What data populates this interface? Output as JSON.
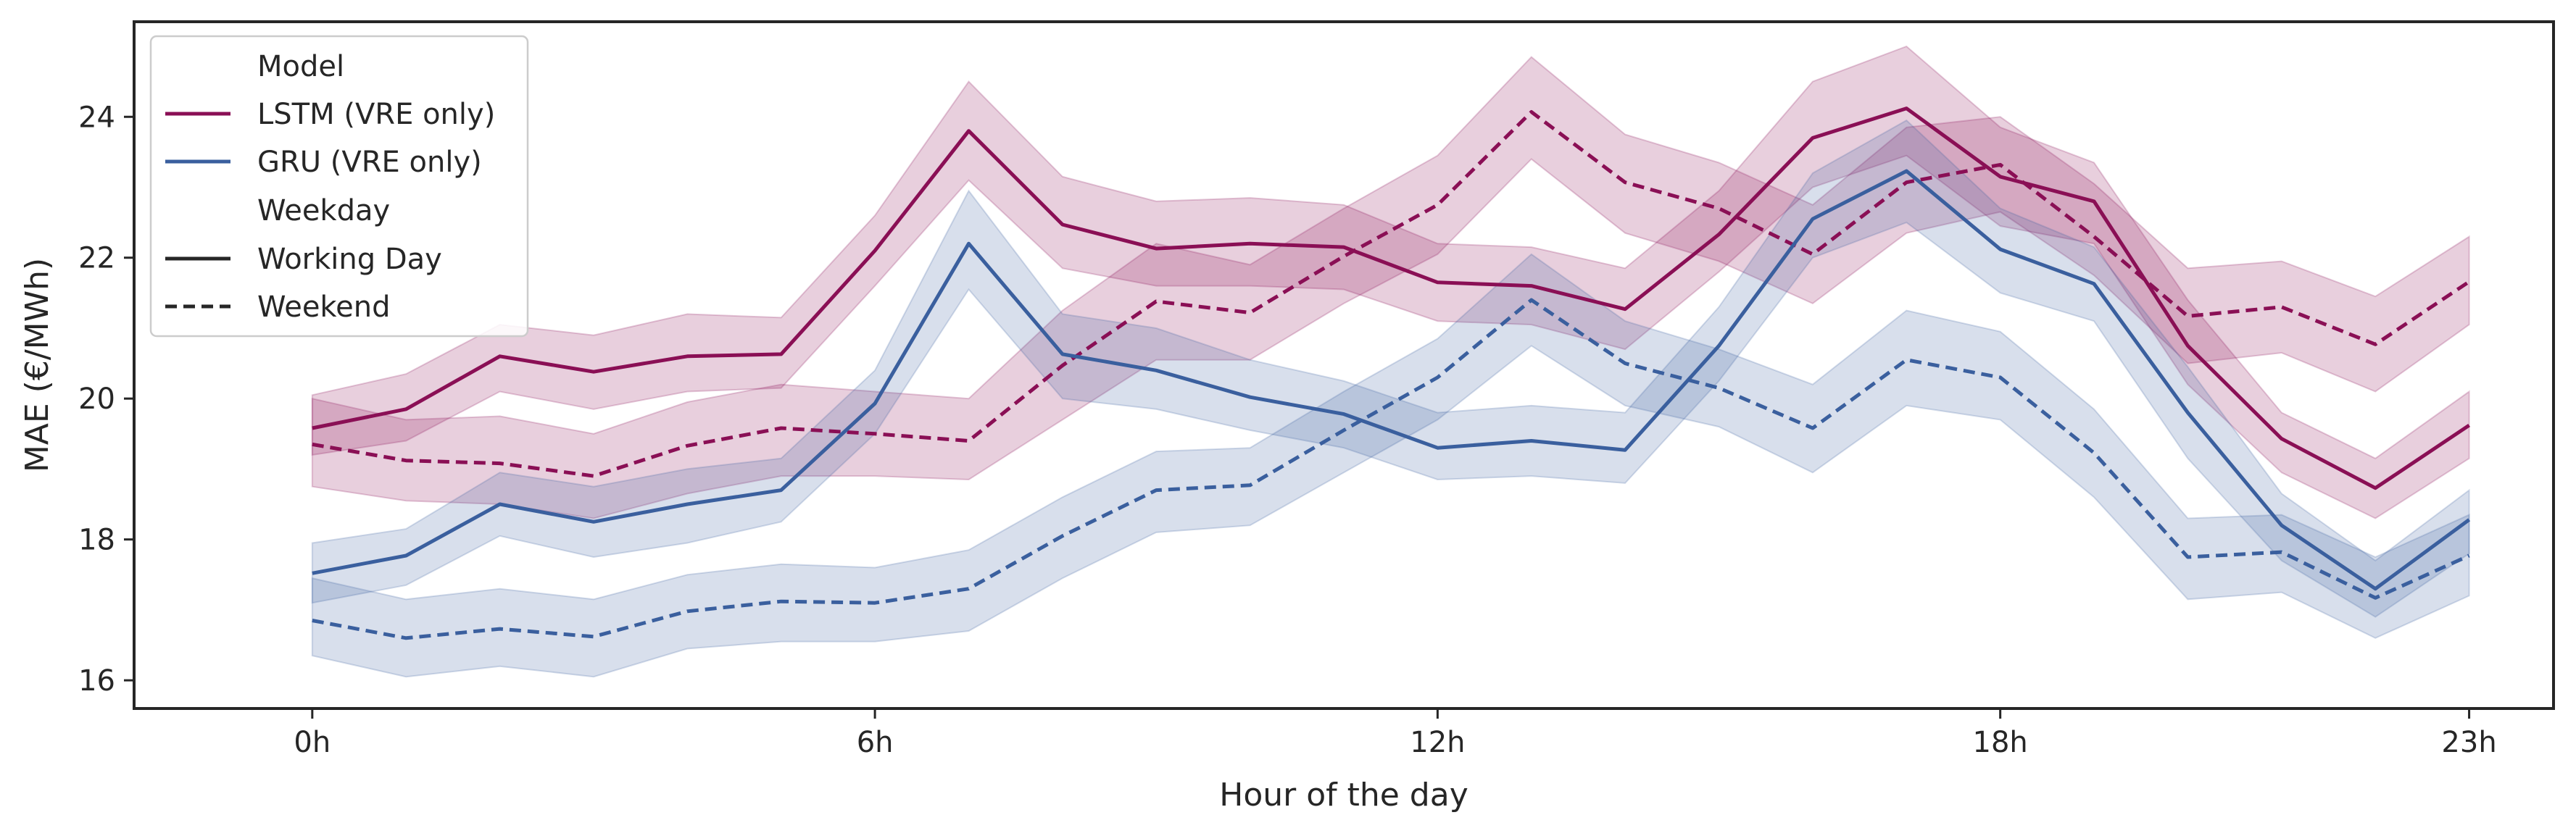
{
  "chart_data": {
    "type": "line",
    "xlabel": "Hour of the day",
    "ylabel": "MAE (€/MWh)",
    "xlim": [
      -1.9,
      23.9
    ],
    "ylim": [
      15.6,
      25.35
    ],
    "x_ticks": [
      {
        "value": 0,
        "label": "0h"
      },
      {
        "value": 6,
        "label": "6h"
      },
      {
        "value": 12,
        "label": "12h"
      },
      {
        "value": 18,
        "label": "18h"
      },
      {
        "value": 23,
        "label": "23h"
      }
    ],
    "y_ticks": [
      {
        "value": 16,
        "label": "16"
      },
      {
        "value": 18,
        "label": "18"
      },
      {
        "value": 20,
        "label": "20"
      },
      {
        "value": 22,
        "label": "22"
      },
      {
        "value": 24,
        "label": "24"
      }
    ],
    "grid": false,
    "legend": {
      "placement": "top-left",
      "model_title": "Model",
      "weekday_title": "Weekday",
      "entries_model": [
        "LSTM (VRE only)",
        "GRU (VRE only)"
      ],
      "entries_weekday": [
        "Working Day",
        "Weekend"
      ]
    },
    "colors": {
      "lstm": "#8a0f55",
      "gru": "#3a5f9e",
      "legend_neutral": "#262626"
    },
    "x": [
      0,
      1,
      2,
      3,
      4,
      5,
      6,
      7,
      8,
      9,
      10,
      11,
      12,
      13,
      14,
      15,
      16,
      17,
      18,
      19,
      20,
      21,
      22,
      23
    ],
    "series": [
      {
        "name": "LSTM (VRE only)",
        "model": "lstm",
        "weekday": "Working Day",
        "style": "solid",
        "values": [
          19.58,
          19.85,
          20.6,
          20.38,
          20.6,
          20.63,
          22.1,
          23.8,
          22.47,
          22.13,
          22.2,
          22.15,
          21.65,
          21.6,
          21.27,
          22.33,
          23.7,
          24.12,
          23.15,
          22.8,
          20.75,
          19.43,
          18.73,
          19.62
        ],
        "lower": [
          19.2,
          19.4,
          20.1,
          19.85,
          20.1,
          20.15,
          21.6,
          23.1,
          21.85,
          21.6,
          21.6,
          21.55,
          21.1,
          21.05,
          20.7,
          21.8,
          23.0,
          23.45,
          22.45,
          22.2,
          20.2,
          18.95,
          18.3,
          19.15
        ],
        "upper": [
          20.05,
          20.35,
          21.05,
          20.9,
          21.2,
          21.15,
          22.6,
          24.5,
          23.15,
          22.8,
          22.85,
          22.75,
          22.2,
          22.15,
          21.85,
          22.95,
          24.5,
          25.0,
          23.85,
          23.35,
          21.4,
          19.8,
          19.15,
          20.1
        ]
      },
      {
        "name": "LSTM (VRE only)",
        "model": "lstm",
        "weekday": "Weekend",
        "style": "dashed",
        "values": [
          19.35,
          19.12,
          19.08,
          18.9,
          19.33,
          19.58,
          19.5,
          19.4,
          20.47,
          21.38,
          21.22,
          22.02,
          22.75,
          24.07,
          23.07,
          22.7,
          22.05,
          23.07,
          23.32,
          22.3,
          21.17,
          21.3,
          20.77,
          21.66
        ],
        "lower": [
          18.75,
          18.55,
          18.5,
          18.3,
          18.65,
          18.9,
          18.9,
          18.85,
          19.7,
          20.55,
          20.55,
          21.35,
          22.05,
          23.4,
          22.35,
          21.95,
          21.35,
          22.35,
          22.65,
          21.75,
          20.5,
          20.65,
          20.1,
          21.05
        ],
        "upper": [
          20.0,
          19.7,
          19.75,
          19.5,
          19.95,
          20.2,
          20.1,
          20.0,
          21.25,
          22.2,
          21.9,
          22.7,
          23.45,
          24.85,
          23.75,
          23.35,
          22.75,
          23.85,
          24.0,
          23.05,
          21.85,
          21.95,
          21.45,
          22.3
        ]
      },
      {
        "name": "GRU (VRE only)",
        "model": "gru",
        "weekday": "Working Day",
        "style": "solid",
        "values": [
          17.52,
          17.77,
          18.5,
          18.25,
          18.5,
          18.7,
          19.93,
          22.2,
          20.63,
          20.4,
          20.02,
          19.78,
          19.3,
          19.4,
          19.27,
          20.75,
          22.55,
          23.23,
          22.12,
          21.63,
          19.8,
          18.2,
          17.3,
          18.28
        ],
        "lower": [
          17.1,
          17.35,
          18.05,
          17.75,
          17.95,
          18.25,
          19.5,
          21.55,
          20.0,
          19.85,
          19.55,
          19.3,
          18.85,
          18.9,
          18.8,
          20.25,
          22.0,
          22.5,
          21.5,
          21.1,
          19.15,
          17.7,
          16.9,
          17.8
        ],
        "upper": [
          17.95,
          18.15,
          18.95,
          18.75,
          19.0,
          19.15,
          20.4,
          22.95,
          21.2,
          21.0,
          20.55,
          20.25,
          19.8,
          19.9,
          19.8,
          21.3,
          23.2,
          23.95,
          22.7,
          22.15,
          20.45,
          18.65,
          17.7,
          18.7
        ]
      },
      {
        "name": "GRU (VRE only)",
        "model": "gru",
        "weekday": "Weekend",
        "style": "dashed",
        "values": [
          16.85,
          16.6,
          16.73,
          16.62,
          16.98,
          17.12,
          17.1,
          17.3,
          18.05,
          18.7,
          18.77,
          19.55,
          20.3,
          21.4,
          20.5,
          20.15,
          19.58,
          20.55,
          20.3,
          19.23,
          17.75,
          17.82,
          17.17,
          17.77
        ],
        "lower": [
          16.35,
          16.05,
          16.2,
          16.05,
          16.45,
          16.55,
          16.55,
          16.7,
          17.45,
          18.1,
          18.2,
          18.95,
          19.7,
          20.75,
          19.9,
          19.6,
          18.95,
          19.9,
          19.7,
          18.6,
          17.15,
          17.25,
          16.6,
          17.2
        ],
        "upper": [
          17.45,
          17.15,
          17.3,
          17.15,
          17.5,
          17.65,
          17.6,
          17.85,
          18.6,
          19.25,
          19.3,
          20.1,
          20.85,
          22.05,
          21.1,
          20.7,
          20.2,
          21.25,
          20.95,
          19.85,
          18.3,
          18.35,
          17.75,
          18.35
        ]
      }
    ]
  }
}
